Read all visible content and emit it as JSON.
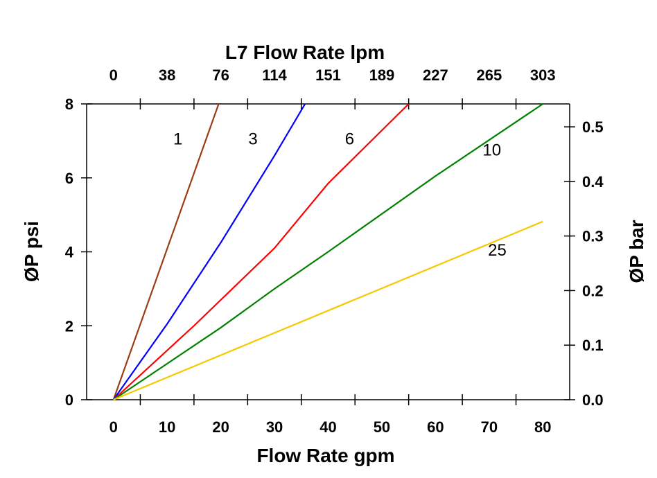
{
  "chart_data": {
    "type": "line",
    "xlabel": "Flow Rate gpm",
    "x2label": "L7 Flow Rate lpm",
    "ylabel": "ØP psi",
    "y2label": "ØP bar",
    "xlim": [
      -5,
      85
    ],
    "ylim": [
      0,
      8
    ],
    "y2lim": [
      0,
      0.542
    ],
    "grid": false,
    "x_ticks": [
      0,
      10,
      20,
      30,
      40,
      50,
      60,
      70,
      80
    ],
    "x_tick_labels": [
      "0",
      "10",
      "20",
      "30",
      "40",
      "50",
      "60",
      "70",
      "80"
    ],
    "x2_tick_labels": [
      "0",
      "38",
      "76",
      "114",
      "151",
      "189",
      "227",
      "265",
      "303"
    ],
    "y_ticks": [
      0,
      2,
      4,
      6,
      8
    ],
    "y_tick_labels": [
      "0",
      "2",
      "4",
      "6",
      "8"
    ],
    "y2_ticks": [
      0,
      0.1,
      0.2,
      0.3,
      0.4,
      0.5
    ],
    "y2_tick_labels": [
      "0.0",
      "0.1",
      "0.2",
      "0.3",
      "0.4",
      "0.5"
    ],
    "series": [
      {
        "name": "1",
        "color": "#9b3d12",
        "x": [
          0,
          19.6
        ],
        "y": [
          0,
          8
        ],
        "label_at": [
          12,
          6.9
        ]
      },
      {
        "name": "3",
        "color": "#0000ff",
        "x": [
          0,
          10,
          20,
          30,
          35.7
        ],
        "y": [
          0,
          2.05,
          4.25,
          6.6,
          8
        ],
        "label_at": [
          26,
          6.9
        ]
      },
      {
        "name": "6",
        "color": "#ff0000",
        "x": [
          0,
          15,
          30,
          40,
          55
        ],
        "y": [
          0,
          2,
          4.1,
          5.85,
          8
        ],
        "label_at": [
          44,
          6.9
        ]
      },
      {
        "name": "10",
        "color": "#008000",
        "x": [
          0,
          20,
          30,
          40,
          60,
          80
        ],
        "y": [
          0,
          1.95,
          3,
          4,
          6.05,
          8
        ],
        "label_at": [
          70.5,
          6.6
        ]
      },
      {
        "name": "25",
        "color": "#f5c800",
        "x": [
          0,
          80
        ],
        "y": [
          0,
          4.82
        ],
        "label_at": [
          71.5,
          3.9
        ]
      }
    ]
  }
}
